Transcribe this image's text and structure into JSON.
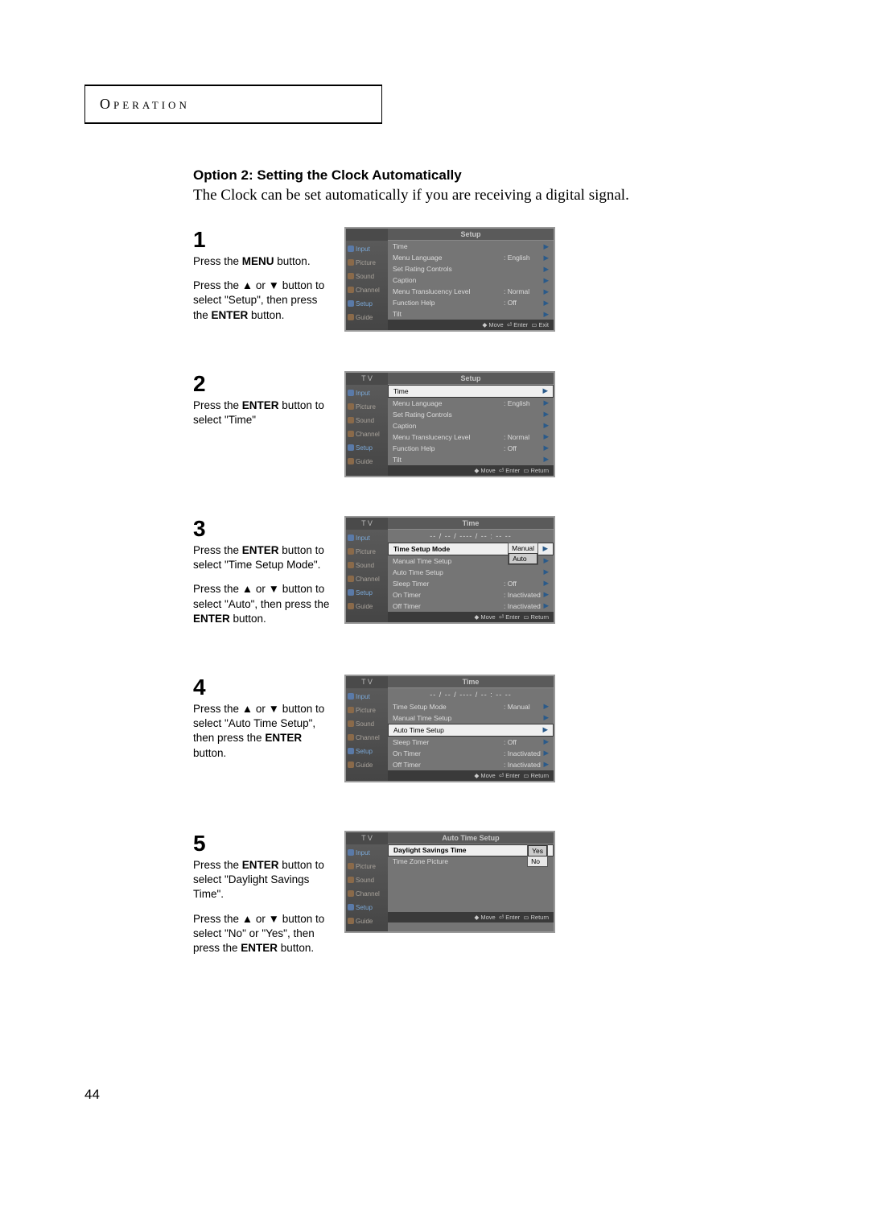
{
  "page_number": "44",
  "header": "Operation",
  "section_title": "Option 2: Setting the Clock Automatically",
  "section_desc": "The Clock can be set automatically if you are receiving a digital signal.",
  "steps": {
    "s1": {
      "num": "1",
      "p1": "Press the <b>MENU</b> button.",
      "p2": "Press the ▲ or ▼ button to select \"Setup\", then press the <b>ENTER</b> button."
    },
    "s2": {
      "num": "2",
      "p1": "Press the <b>ENTER</b> button to select \"Time\""
    },
    "s3": {
      "num": "3",
      "p1": "Press the <b>ENTER</b> button to select \"Time Setup Mode\".",
      "p2": "Press the ▲ or ▼ button to select \"Auto\", then press the <b>ENTER</b> button."
    },
    "s4": {
      "num": "4",
      "p1": "Press the ▲ or ▼ button to select \"Auto Time Setup\", then press the <b>ENTER</b> button."
    },
    "s5": {
      "num": "5",
      "p1": "Press the <b>ENTER</b> button to select \"Daylight Savings Time\".",
      "p2": "Press the ▲ or ▼ button to select \"No\" or \"Yes\", then press the <b>ENTER</b> button."
    }
  },
  "tv": {
    "sidebar": {
      "input": "Input",
      "picture": "Picture",
      "sound": "Sound",
      "channel": "Channel",
      "setup": "Setup",
      "guide": "Guide"
    },
    "setup_title": "Setup",
    "tv_label": "T V",
    "time_title": "Time",
    "auto_time_title": "Auto Time Setup",
    "time_display": "-- / -- / ---- / -- : --  --",
    "footers": {
      "move": "◆ Move",
      "enter": "⏎ Enter",
      "exit": "▭ Exit",
      "ret": "▭ Return"
    },
    "setup_rows": {
      "time": "Time",
      "menu_lang": "Menu Language",
      "menu_lang_v": ": English",
      "rating": "Set Rating Controls",
      "caption": "Caption",
      "trans": "Menu Translucency Level",
      "trans_v": ": Normal",
      "func": "Function Help",
      "func_v": ": Off",
      "tilt": "Tilt"
    },
    "time_rows": {
      "mode": "Time Setup Mode",
      "mode_v": ": Manual",
      "manual": "Manual Time Setup",
      "auto": "Auto Time Setup",
      "sleep": "Sleep Timer",
      "sleep_v": ": Off",
      "on": "On Timer",
      "on_v": ": Inactivated",
      "off": "Off Timer",
      "off_v": ": Inactivated",
      "dropdown_manual": "Manual",
      "dropdown_auto": "Auto"
    },
    "auto_rows": {
      "dst": "Daylight Savings Time",
      "tz": "Time Zone Picture",
      "yes": "Yes",
      "no": "No"
    }
  }
}
